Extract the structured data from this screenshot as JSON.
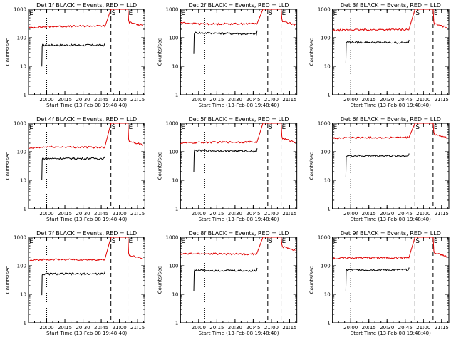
{
  "chart_data": [
    {
      "type": "line",
      "title": "Det 1f BLACK = Events, RED = LLD",
      "xlabel": "Start Time (13-Feb-08 19:48:40)",
      "ylabel": "Counts/sec",
      "yscale": "log",
      "ylim": [
        1,
        1000
      ],
      "xticks": [
        "20:00",
        "20:15",
        "20:30",
        "20:45",
        "21:00",
        "21:15"
      ],
      "yticks": [
        "1",
        "10",
        "100",
        "1000"
      ],
      "markers": {
        "dotted": "20:00",
        "start_label": "S",
        "start": "20:53",
        "end_label": "E",
        "end": "21:07",
        "event": "20:48"
      },
      "series": [
        {
          "color": "#000000",
          "start": "19:56",
          "level": 55,
          "end": "20:48",
          "trend": 0
        },
        {
          "color": "#e00000",
          "start": "19:45",
          "level": 240,
          "end": "21:20",
          "pre": 225,
          "spike": 1000,
          "post": 300,
          "trend": 0.1
        }
      ]
    },
    {
      "type": "line",
      "title": "Det 2f BLACK = Events, RED = LLD",
      "xlabel": "Start Time (13-Feb-08 19:48:40)",
      "ylabel": "Counts/sec",
      "yscale": "log",
      "ylim": [
        1,
        1000
      ],
      "xticks": [
        "20:00",
        "20:15",
        "20:30",
        "20:45",
        "21:00",
        "21:15"
      ],
      "yticks": [
        "1",
        "10",
        "100",
        "1000"
      ],
      "markers": {
        "dotted": "20:05",
        "start_label": "S",
        "start": "20:57",
        "end_label": "E",
        "end": "21:08",
        "event": "20:48"
      },
      "series": [
        {
          "color": "#000000",
          "start": "19:56",
          "level": 150,
          "end": "20:48",
          "trend": -0.1
        },
        {
          "color": "#e00000",
          "start": "19:45",
          "level": 300,
          "end": "21:20",
          "pre": 340,
          "spike": 1000,
          "post": 330,
          "trend": 0.05
        }
      ]
    },
    {
      "type": "line",
      "title": "Det 3f BLACK = Events, RED = LLD",
      "xlabel": "Start Time (13-Feb-08 19:48:40)",
      "ylabel": "Counts/sec",
      "yscale": "log",
      "ylim": [
        1,
        1000
      ],
      "xticks": [
        "20:00",
        "20:15",
        "20:30",
        "20:45",
        "21:00",
        "21:15"
      ],
      "yticks": [
        "1",
        "10",
        "100",
        "1000"
      ],
      "markers": {
        "dotted": "20:00",
        "start_label": "S",
        "start": "20:53",
        "end_label": "E",
        "end": "21:08",
        "event": "20:48"
      },
      "series": [
        {
          "color": "#000000",
          "start": "19:56",
          "level": 70,
          "end": "20:48",
          "trend": -0.05
        },
        {
          "color": "#e00000",
          "start": "19:45",
          "level": 190,
          "end": "21:20",
          "pre": 180,
          "spike": 1000,
          "post": 260,
          "trend": 0.02
        }
      ]
    },
    {
      "type": "line",
      "title": "Det 4f BLACK = Events, RED = LLD",
      "xlabel": "Start Time (13-Feb-08 19:48:40)",
      "ylabel": "Counts/sec",
      "yscale": "log",
      "ylim": [
        1,
        1000
      ],
      "xticks": [
        "20:00",
        "20:15",
        "20:30",
        "20:45",
        "21:00",
        "21:15"
      ],
      "yticks": [
        "1",
        "10",
        "100",
        "1000"
      ],
      "markers": {
        "dotted": "20:00",
        "start_label": "S",
        "start": "20:53",
        "end_label": "E",
        "end": "21:07",
        "event": "20:48"
      },
      "series": [
        {
          "color": "#000000",
          "start": "19:56",
          "level": 58,
          "end": "20:48",
          "trend": 0
        },
        {
          "color": "#e00000",
          "start": "19:45",
          "level": 150,
          "end": "21:20",
          "pre": 130,
          "spike": 1000,
          "post": 200,
          "trend": -0.05
        }
      ]
    },
    {
      "type": "line",
      "title": "Det 5f BLACK = Events, RED = LLD",
      "xlabel": "Start Time (13-Feb-08 19:48:40)",
      "ylabel": "Counts/sec",
      "yscale": "log",
      "ylim": [
        1,
        1000
      ],
      "xticks": [
        "20:00",
        "20:15",
        "20:30",
        "20:45",
        "21:00",
        "21:15"
      ],
      "yticks": [
        "1",
        "10",
        "100",
        "1000"
      ],
      "markers": {
        "dotted": "20:05",
        "start_label": "S",
        "start": "20:57",
        "end_label": "E",
        "end": "21:08",
        "event": "20:48"
      },
      "series": [
        {
          "color": "#000000",
          "start": "19:56",
          "level": 110,
          "end": "20:48",
          "trend": -0.05
        },
        {
          "color": "#e00000",
          "start": "19:45",
          "level": 210,
          "end": "21:20",
          "pre": 200,
          "spike": 1000,
          "post": 250,
          "trend": 0.05
        }
      ]
    },
    {
      "type": "line",
      "title": "Det 6f BLACK = Events, RED = LLD",
      "xlabel": "Start Time (13-Feb-08 19:48:40)",
      "ylabel": "Counts/sec",
      "yscale": "log",
      "ylim": [
        1,
        1000
      ],
      "xticks": [
        "20:00",
        "20:15",
        "20:30",
        "20:45",
        "21:00",
        "21:15"
      ],
      "yticks": [
        "1",
        "10",
        "100",
        "1000"
      ],
      "markers": {
        "dotted": "20:00",
        "start_label": "S",
        "start": "20:53",
        "end_label": "E",
        "end": "21:08",
        "event": "20:48"
      },
      "series": [
        {
          "color": "#000000",
          "start": "19:56",
          "level": 72,
          "end": "20:48",
          "trend": 0
        },
        {
          "color": "#e00000",
          "start": "19:45",
          "level": 310,
          "end": "21:20",
          "pre": 300,
          "spike": 1000,
          "post": 350,
          "trend": 0.02
        }
      ]
    },
    {
      "type": "line",
      "title": "Det 7f BLACK = Events, RED = LLD",
      "xlabel": "Start Time (13-Feb-08 19:48:40)",
      "ylabel": "Counts/sec",
      "yscale": "log",
      "ylim": [
        1,
        1000
      ],
      "xticks": [
        "20:00",
        "20:15",
        "20:30",
        "20:45",
        "21:00",
        "21:15"
      ],
      "yticks": [
        "1",
        "10",
        "100",
        "1000"
      ],
      "markers": {
        "dotted": "20:00",
        "start_label": "S",
        "start": "20:53",
        "end_label": "E",
        "end": "21:07",
        "event": "20:48"
      },
      "series": [
        {
          "color": "#000000",
          "start": "19:56",
          "level": 52,
          "end": "20:48",
          "trend": 0
        },
        {
          "color": "#e00000",
          "start": "19:45",
          "level": 170,
          "end": "21:20",
          "pre": 150,
          "spike": 1000,
          "post": 200,
          "trend": -0.05
        }
      ]
    },
    {
      "type": "line",
      "title": "Det 8f BLACK = Events, RED = LLD",
      "xlabel": "Start Time (13-Feb-08 19:48:40)",
      "ylabel": "Counts/sec",
      "yscale": "log",
      "ylim": [
        1,
        1000
      ],
      "xticks": [
        "20:00",
        "20:15",
        "20:30",
        "20:45",
        "21:00",
        "21:15"
      ],
      "yticks": [
        "1",
        "10",
        "100",
        "1000"
      ],
      "markers": {
        "dotted": "20:05",
        "start_label": "S",
        "start": "20:57",
        "end_label": "E",
        "end": "21:08",
        "event": "20:48"
      },
      "series": [
        {
          "color": "#000000",
          "start": "19:56",
          "level": 70,
          "end": "20:48",
          "trend": -0.05
        },
        {
          "color": "#e00000",
          "start": "19:45",
          "level": 270,
          "end": "21:20",
          "pre": 260,
          "spike": 1000,
          "post": 400,
          "trend": -0.05
        }
      ]
    },
    {
      "type": "line",
      "title": "Det 9f BLACK = Events, RED = LLD",
      "xlabel": "Start Time (13-Feb-08 19:48:40)",
      "ylabel": "Counts/sec",
      "yscale": "log",
      "ylim": [
        1,
        1000
      ],
      "xticks": [
        "20:00",
        "20:15",
        "20:30",
        "20:45",
        "21:00",
        "21:15"
      ],
      "yticks": [
        "1",
        "10",
        "100",
        "1000"
      ],
      "markers": {
        "dotted": "20:00",
        "start_label": "S",
        "start": "20:53",
        "end_label": "E",
        "end": "21:08",
        "event": "20:48"
      },
      "series": [
        {
          "color": "#000000",
          "start": "19:56",
          "level": 72,
          "end": "20:48",
          "trend": 0
        },
        {
          "color": "#e00000",
          "start": "19:45",
          "level": 190,
          "end": "21:20",
          "pre": 180,
          "spike": 1000,
          "post": 240,
          "trend": 0.02
        }
      ]
    }
  ]
}
